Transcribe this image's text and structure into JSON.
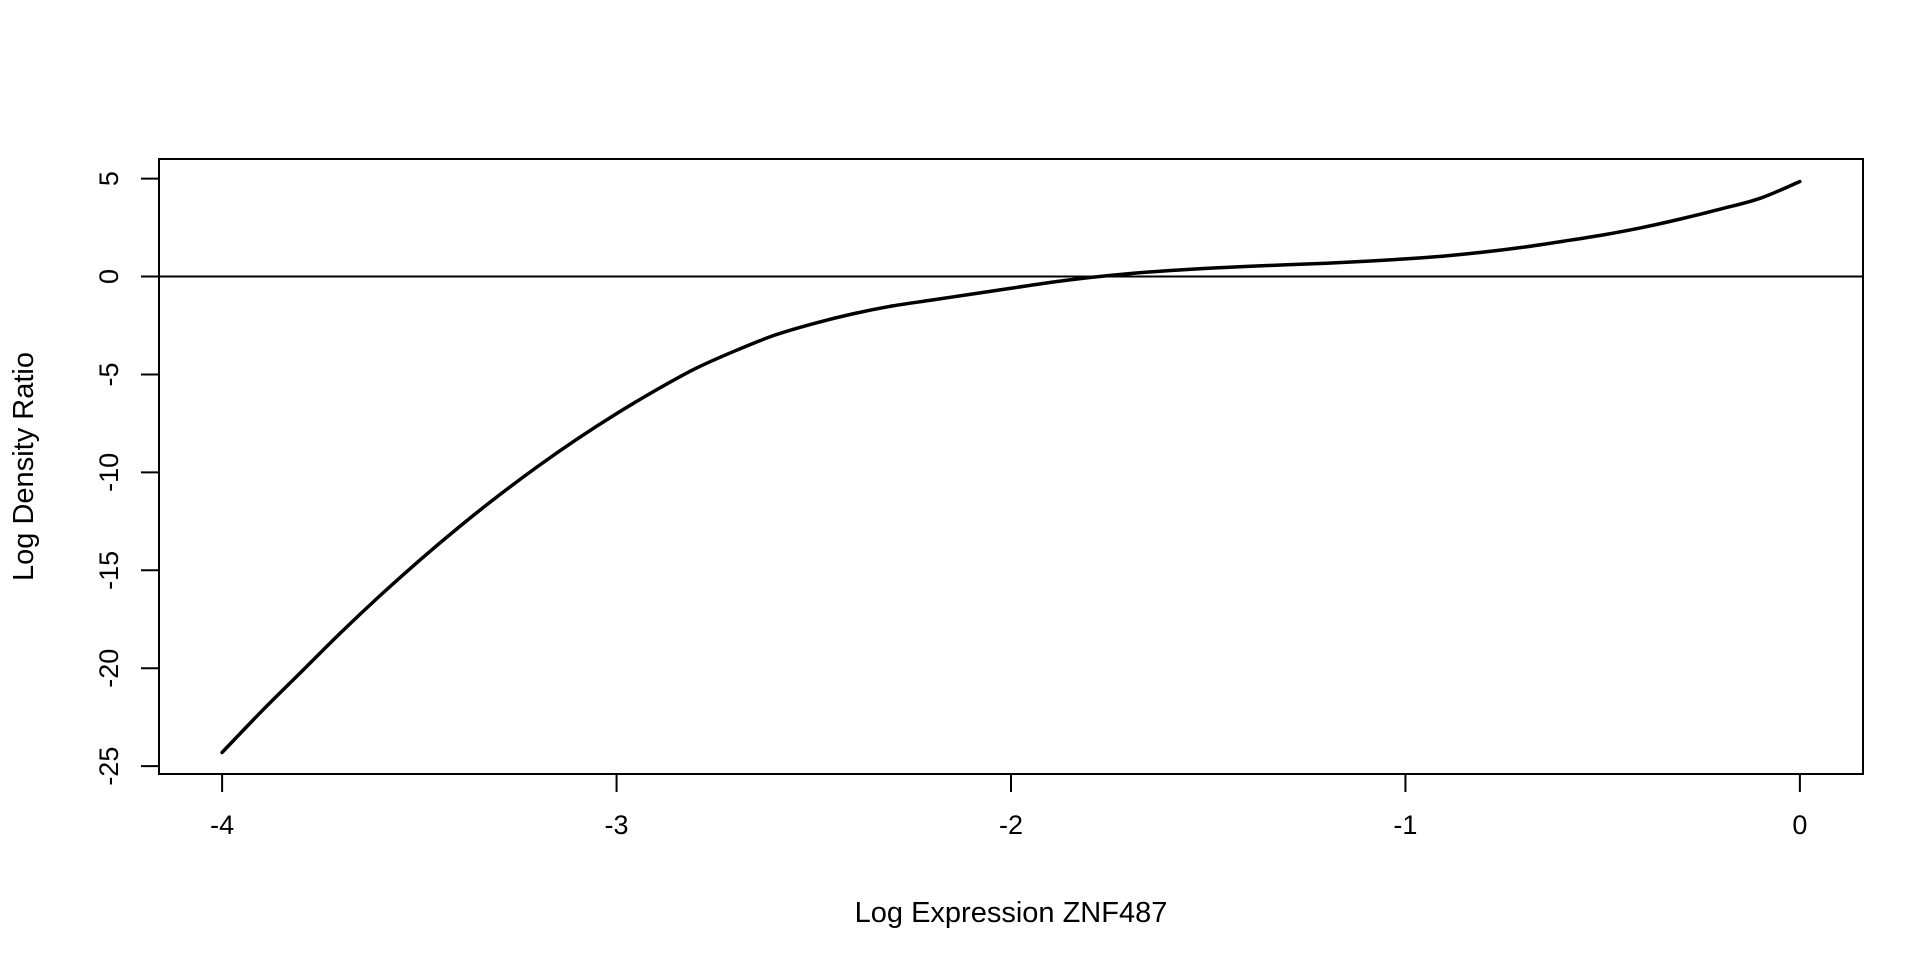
{
  "chart_data": {
    "type": "line",
    "title": "",
    "xlabel": "Log Expression ZNF487",
    "ylabel": "Log Density Ratio",
    "xlim": [
      -4.16,
      0.16
    ],
    "ylim": [
      -25.4,
      6.0
    ],
    "grid": false,
    "legend": "none",
    "x_ticks": [
      -4,
      -3,
      -2,
      -1,
      0
    ],
    "x_tick_labels": [
      "-4",
      "-3",
      "-2",
      "-1",
      "0"
    ],
    "y_ticks": [
      -25,
      -20,
      -15,
      -10,
      -5,
      0,
      5
    ],
    "y_tick_labels": [
      "-25",
      "-20",
      "-15",
      "-10",
      "-5",
      "0",
      "5"
    ],
    "reference_line": {
      "axis": "y",
      "value": 0
    },
    "series": [
      {
        "color": "#000000",
        "x": [
          -4.0,
          -3.9,
          -3.8,
          -3.7,
          -3.6,
          -3.5,
          -3.4,
          -3.3,
          -3.2,
          -3.1,
          -3.0,
          -2.9,
          -2.8,
          -2.7,
          -2.6,
          -2.5,
          -2.4,
          -2.3,
          -2.2,
          -2.1,
          -2.0,
          -1.9,
          -1.8,
          -1.7,
          -1.6,
          -1.5,
          -1.4,
          -1.3,
          -1.2,
          -1.1,
          -1.0,
          -0.9,
          -0.8,
          -0.7,
          -0.6,
          -0.5,
          -0.4,
          -0.3,
          -0.2,
          -0.1,
          0.0
        ],
        "y": [
          -24.3,
          -22.2,
          -20.2,
          -18.2,
          -16.3,
          -14.5,
          -12.8,
          -11.2,
          -9.7,
          -8.3,
          -7.0,
          -5.8,
          -4.7,
          -3.8,
          -3.0,
          -2.4,
          -1.9,
          -1.5,
          -1.2,
          -0.9,
          -0.6,
          -0.3,
          -0.05,
          0.15,
          0.3,
          0.42,
          0.52,
          0.6,
          0.68,
          0.78,
          0.9,
          1.05,
          1.25,
          1.5,
          1.8,
          2.12,
          2.5,
          2.95,
          3.45,
          4.0,
          4.85
        ]
      }
    ]
  }
}
